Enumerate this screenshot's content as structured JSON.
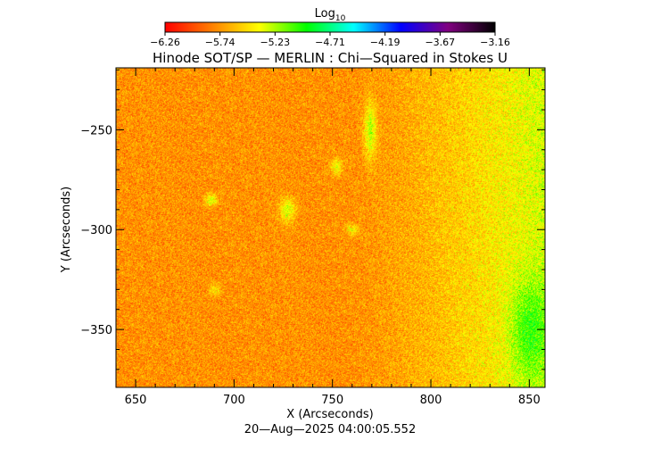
{
  "chart_data": {
    "type": "heatmap",
    "title": "Hinode SOT/SP — MERLIN : Chi—Squared in Stokes U",
    "colorbar": {
      "label_base": "Log",
      "label_sub": "10",
      "ticks": [
        "−6.26",
        "−5.74",
        "−5.23",
        "−4.71",
        "−4.19",
        "−3.67",
        "−3.16"
      ],
      "range": [
        -6.26,
        -3.16
      ],
      "colormap": [
        "#ff0000",
        "#ff8000",
        "#ffff00",
        "#00ff00",
        "#00ffff",
        "#0000ff",
        "#800080",
        "#000000"
      ]
    },
    "xlabel": "X (Arcseconds)",
    "ylabel": "Y (Arcseconds)",
    "xlim": [
      640,
      858
    ],
    "ylim": [
      -379,
      -219
    ],
    "x_ticks": [
      {
        "value": 650,
        "label": "650"
      },
      {
        "value": 700,
        "label": "700"
      },
      {
        "value": 750,
        "label": "750"
      },
      {
        "value": 800,
        "label": "800"
      },
      {
        "value": 850,
        "label": "850"
      }
    ],
    "y_ticks": [
      {
        "value": -250,
        "label": "−250"
      },
      {
        "value": -300,
        "label": "−300"
      },
      {
        "value": -350,
        "label": "−350"
      }
    ],
    "value_field": {
      "base": -5.75,
      "east_increase": 0.45,
      "noise": 0.22,
      "features": [
        {
          "x": 769,
          "y": -250,
          "rx": 3,
          "ry": 14,
          "dv": 0.5
        },
        {
          "x": 727,
          "y": -290,
          "rx": 4,
          "ry": 6,
          "dv": 0.45
        },
        {
          "x": 688,
          "y": -285,
          "rx": 3,
          "ry": 3,
          "dv": 0.45
        },
        {
          "x": 752,
          "y": -268,
          "rx": 3,
          "ry": 4,
          "dv": 0.4
        },
        {
          "x": 760,
          "y": -300,
          "rx": 3,
          "ry": 3,
          "dv": 0.35
        },
        {
          "x": 690,
          "y": -330,
          "rx": 3,
          "ry": 3,
          "dv": 0.3
        },
        {
          "x": 850,
          "y": -350,
          "rx": 10,
          "ry": 25,
          "dv": 0.35
        }
      ]
    },
    "footer": "20—Aug—2025 04:00:05.552"
  }
}
